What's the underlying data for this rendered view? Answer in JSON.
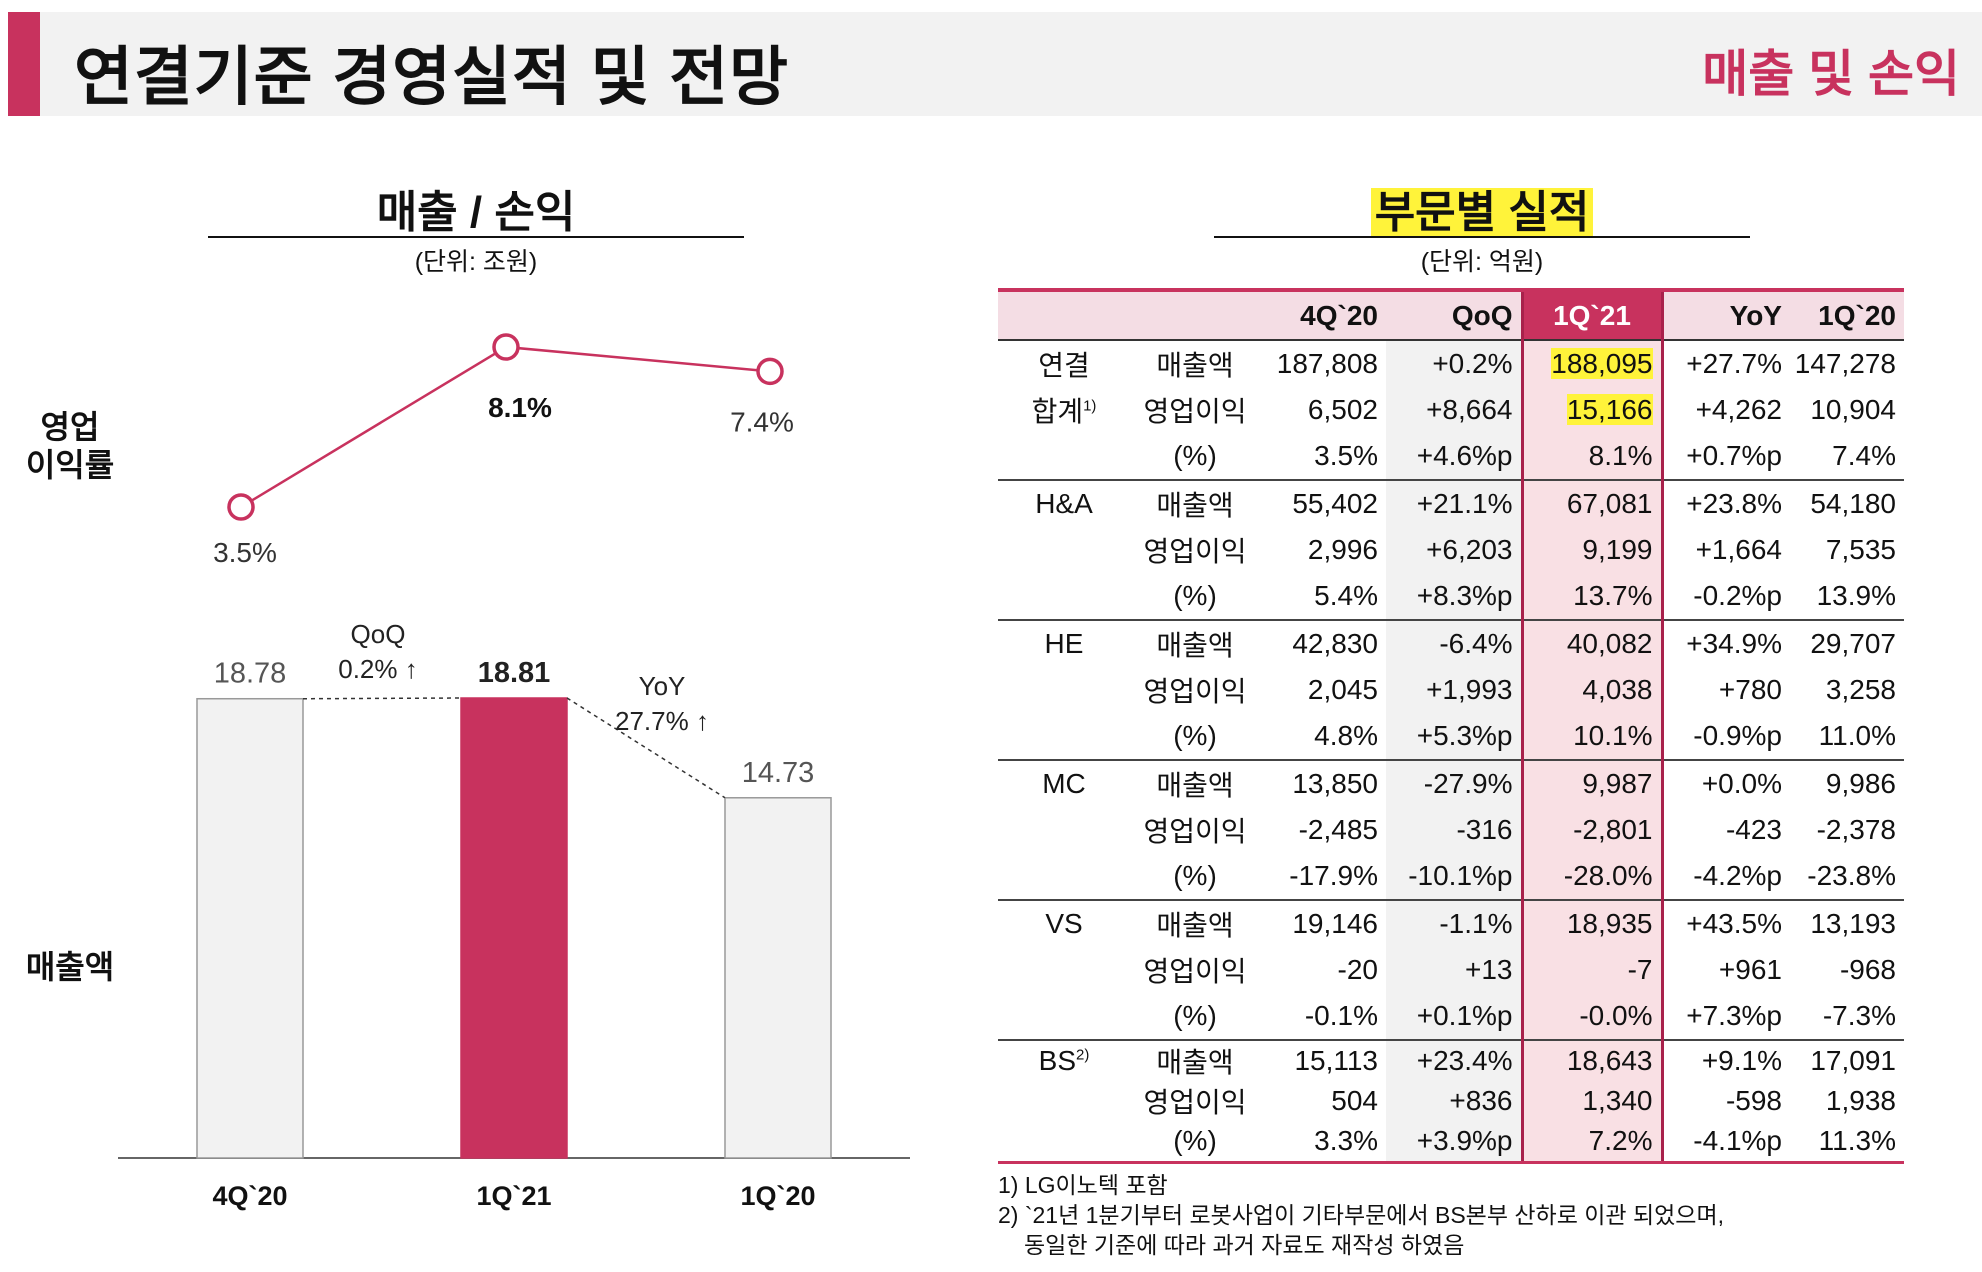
{
  "header": {
    "title": "연결기준 경영실적 및 전망",
    "right_label": "매출 및 손익"
  },
  "left": {
    "title": "매출 / 손익",
    "unit": "(단위: 조원)",
    "ylabel_margin_line1": "영업",
    "ylabel_margin_line2": "이익률",
    "ylabel_sales": "매출액"
  },
  "chart_data": {
    "type": "bar",
    "categories": [
      "4Q`20",
      "1Q`21",
      "1Q`20"
    ],
    "series": [
      {
        "name": "매출액",
        "values": [
          18.78,
          18.81,
          14.73
        ],
        "labels": [
          "18.78",
          "18.81",
          "14.73"
        ]
      },
      {
        "name": "영업이익률",
        "values": [
          3.5,
          8.1,
          7.4
        ],
        "labels": [
          "3.5%",
          "8.1%",
          "7.4%"
        ]
      }
    ],
    "annotations": {
      "qoq": {
        "line1": "QoQ",
        "line2": "0.2% ↑"
      },
      "yoy": {
        "line1": "YoY",
        "line2": "27.7% ↑"
      }
    },
    "highlight_category": "1Q`21",
    "colors": {
      "accent": "#c8325e",
      "bar_other": "#f2f2f2",
      "bar_border": "#999999"
    }
  },
  "right": {
    "title": "부문별 실적",
    "unit": "(단위: 억원)",
    "columns": [
      "4Q`20",
      "QoQ",
      "1Q`21",
      "YoY",
      "1Q`20"
    ],
    "rows": [
      {
        "seg": "연결",
        "item": "매출액",
        "v": [
          "187,808",
          "+0.2%",
          "188,095",
          "+27.7%",
          "147,278"
        ]
      },
      {
        "seg": "합계",
        "seg_sup": "1)",
        "item": "영업이익",
        "v": [
          "6,502",
          "+8,664",
          "15,166",
          "+4,262",
          "10,904"
        ]
      },
      {
        "seg": "",
        "item": "(%)",
        "v": [
          "3.5%",
          "+4.6%p",
          "8.1%",
          "+0.7%p",
          "7.4%"
        ]
      },
      {
        "seg": "H&A",
        "item": "매출액",
        "v": [
          "55,402",
          "+21.1%",
          "67,081",
          "+23.8%",
          "54,180"
        ]
      },
      {
        "seg": "",
        "item": "영업이익",
        "v": [
          "2,996",
          "+6,203",
          "9,199",
          "+1,664",
          "7,535"
        ]
      },
      {
        "seg": "",
        "item": "(%)",
        "v": [
          "5.4%",
          "+8.3%p",
          "13.7%",
          "-0.2%p",
          "13.9%"
        ]
      },
      {
        "seg": "HE",
        "item": "매출액",
        "v": [
          "42,830",
          "-6.4%",
          "40,082",
          "+34.9%",
          "29,707"
        ]
      },
      {
        "seg": "",
        "item": "영업이익",
        "v": [
          "2,045",
          "+1,993",
          "4,038",
          "+780",
          "3,258"
        ]
      },
      {
        "seg": "",
        "item": "(%)",
        "v": [
          "4.8%",
          "+5.3%p",
          "10.1%",
          "-0.9%p",
          "11.0%"
        ]
      },
      {
        "seg": "MC",
        "item": "매출액",
        "v": [
          "13,850",
          "-27.9%",
          "9,987",
          "+0.0%",
          "9,986"
        ]
      },
      {
        "seg": "",
        "item": "영업이익",
        "v": [
          "-2,485",
          "-316",
          "-2,801",
          "-423",
          "-2,378"
        ]
      },
      {
        "seg": "",
        "item": "(%)",
        "v": [
          "-17.9%",
          "-10.1%p",
          "-28.0%",
          "-4.2%p",
          "-23.8%"
        ]
      },
      {
        "seg": "VS",
        "item": "매출액",
        "v": [
          "19,146",
          "-1.1%",
          "18,935",
          "+43.5%",
          "13,193"
        ]
      },
      {
        "seg": "",
        "item": "영업이익",
        "v": [
          "-20",
          "+13",
          "-7",
          "+961",
          "-968"
        ]
      },
      {
        "seg": "",
        "item": "(%)",
        "v": [
          "-0.1%",
          "+0.1%p",
          "-0.0%",
          "+7.3%p",
          "-7.3%"
        ]
      },
      {
        "seg": "BS",
        "seg_sup": "2)",
        "item": "매출액",
        "v": [
          "15,113",
          "+23.4%",
          "18,643",
          "+9.1%",
          "17,091"
        ]
      },
      {
        "seg": "",
        "item": "영업이익",
        "v": [
          "504",
          "+836",
          "1,340",
          "-598",
          "1,938"
        ]
      },
      {
        "seg": "",
        "item": "(%)",
        "v": [
          "3.3%",
          "+3.9%p",
          "7.2%",
          "-4.1%p",
          "11.3%"
        ]
      }
    ],
    "notes": [
      "1) LG이노텍 포함",
      "2) `21년 1분기부터 로봇사업이 기타부문에서 BS본부 산하로 이관 되었으며,",
      "동일한 기준에 따라 과거 자료도 재작성 하였음"
    ]
  }
}
